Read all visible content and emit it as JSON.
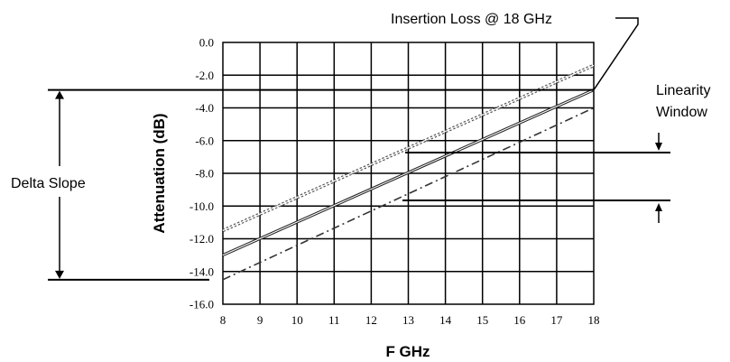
{
  "chart_data": {
    "type": "line",
    "xlabel": "F GHz",
    "ylabel": "Attenuation (dB)",
    "xlim": [
      8,
      18
    ],
    "ylim": [
      -16,
      0
    ],
    "x_ticks": [
      "8",
      "9",
      "10",
      "11",
      "12",
      "13",
      "14",
      "15",
      "16",
      "17",
      "18"
    ],
    "y_ticks": [
      "0.0",
      "-2.0",
      "-4.0",
      "-6.0",
      "-8.0",
      "-10.0",
      "-12.0",
      "-14.0",
      "-16.0"
    ],
    "grid": true,
    "series": [
      {
        "style": "dotted-double",
        "x": [
          8,
          18
        ],
        "y": [
          -11.5,
          -1.4
        ]
      },
      {
        "style": "solid-double",
        "x": [
          8,
          18
        ],
        "y": [
          -13.0,
          -2.9
        ]
      },
      {
        "style": "dash-dot",
        "x": [
          8,
          18
        ],
        "y": [
          -14.5,
          -4.0
        ]
      }
    ],
    "annotations": {
      "insertion_loss": "Insertion Loss @ 18 GHz",
      "linearity_line1": "Linearity",
      "linearity_line2": "Window",
      "delta_slope": "Delta Slope"
    }
  }
}
